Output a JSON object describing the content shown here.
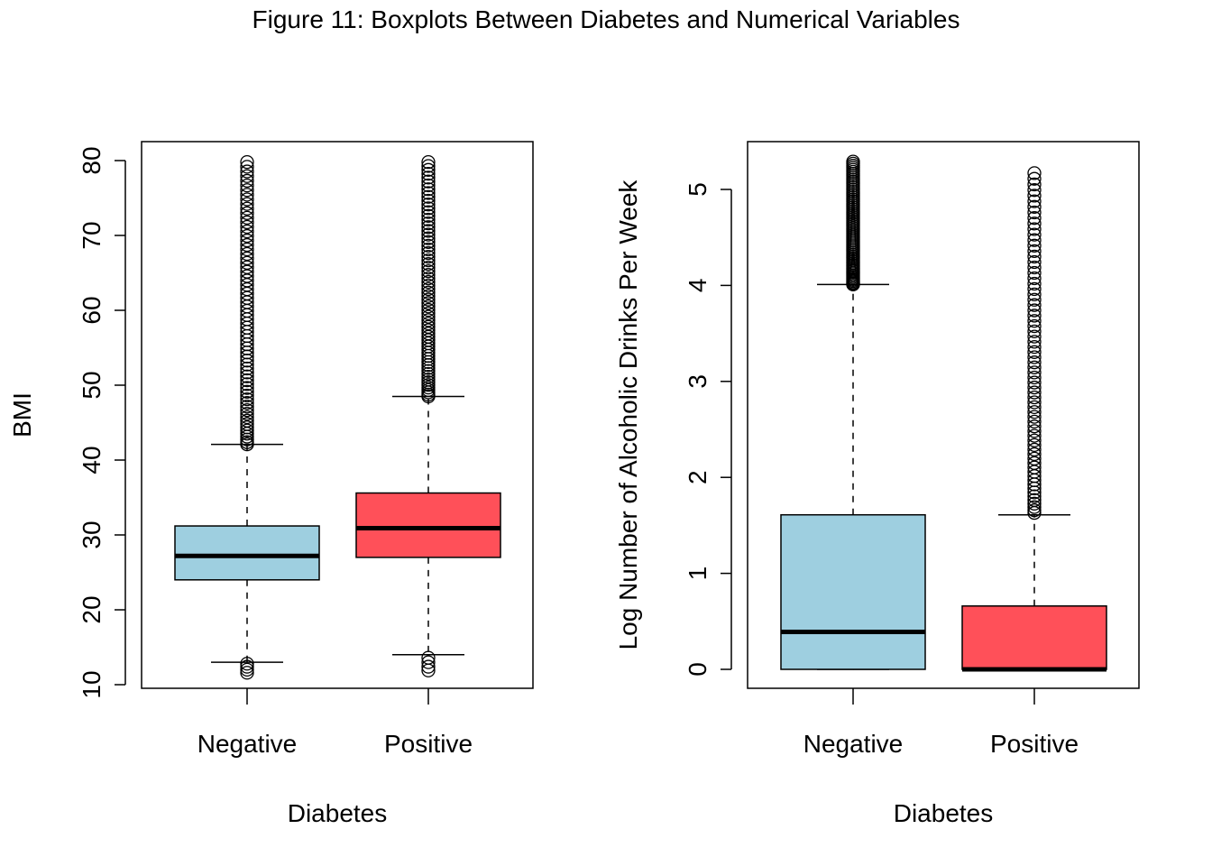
{
  "figure_title": "Figure 11: Boxplots Between Diabetes and Numerical Variables",
  "colors": {
    "negative_fill": "#9ECFE0",
    "positive_fill": "#FF5059",
    "stroke": "#000000"
  },
  "chart_data": [
    {
      "type": "boxplot",
      "xlabel": "Diabetes",
      "ylabel": "BMI",
      "ylim": [
        10,
        80
      ],
      "yticks": [
        "10",
        "20",
        "30",
        "40",
        "50",
        "60",
        "70",
        "80"
      ],
      "categories": [
        "Negative",
        "Positive"
      ],
      "boxes": [
        {
          "category": "Negative",
          "fill": "#9ECFE0",
          "whisker_low": 13,
          "q1": 24,
          "median": 27.2,
          "q3": 31.2,
          "whisker_high": 42.1,
          "outliers_low": [
            11.6,
            12.0,
            12.4,
            12.8
          ],
          "outliers_high_range": [
            42.1,
            79.8
          ]
        },
        {
          "category": "Positive",
          "fill": "#FF5059",
          "whisker_low": 14,
          "q1": 27,
          "median": 30.9,
          "q3": 35.6,
          "whisker_high": 48.5,
          "outliers_low": [
            11.9,
            12.4,
            13.0,
            13.6
          ],
          "outliers_high_range": [
            48.5,
            79.8
          ]
        }
      ]
    },
    {
      "type": "boxplot",
      "xlabel": "Diabetes",
      "ylabel": "Log Number of Alcoholic Drinks Per Week",
      "ylim": [
        0,
        5.3
      ],
      "yticks": [
        "0",
        "1",
        "2",
        "3",
        "4",
        "5"
      ],
      "categories": [
        "Negative",
        "Positive"
      ],
      "boxes": [
        {
          "category": "Negative",
          "fill": "#9ECFE0",
          "whisker_low": 0,
          "q1": 0,
          "median": 0.39,
          "q3": 1.61,
          "whisker_high": 4.01,
          "outliers_low": [],
          "outliers_high_range": [
            4.01,
            5.29
          ]
        },
        {
          "category": "Positive",
          "fill": "#FF5059",
          "whisker_low": 0,
          "q1": 0,
          "median": 0,
          "q3": 0.66,
          "whisker_high": 1.61,
          "outliers_low": [],
          "outliers_high_range": [
            1.63,
            5.17
          ]
        }
      ]
    }
  ]
}
